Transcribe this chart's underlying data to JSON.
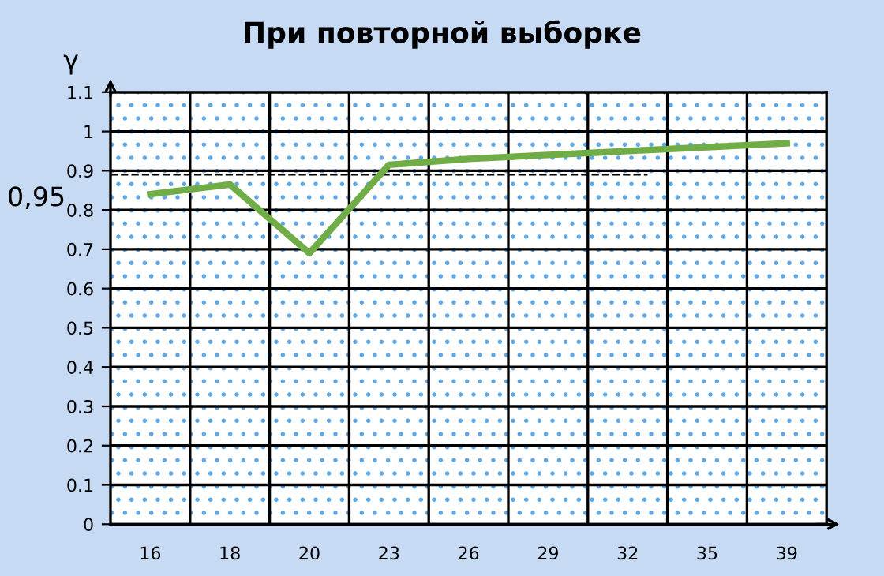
{
  "chart_data": {
    "type": "line",
    "title": "При повторной выборке",
    "ylabel": "γ",
    "categories": [
      "16",
      "18",
      "20",
      "23",
      "26",
      "29",
      "32",
      "35",
      "39"
    ],
    "series": [
      {
        "color": "#70ad47",
        "values": [
          0.84,
          0.865,
          0.69,
          0.915,
          0.93,
          0.94,
          0.95,
          0.96,
          0.97
        ]
      }
    ],
    "ylim": [
      0,
      1.1
    ],
    "yticks": [
      0,
      0.1,
      0.2,
      0.3,
      0.4,
      0.5,
      0.6,
      0.7,
      0.8,
      0.9,
      1,
      1.1
    ],
    "ref_lines": [
      {
        "axis": "y",
        "value": 0.89,
        "line_style": "dashed",
        "color": "#000000"
      }
    ],
    "annotations": [
      "0,95"
    ],
    "grid": true,
    "marker": "none",
    "line_style": "solid"
  }
}
